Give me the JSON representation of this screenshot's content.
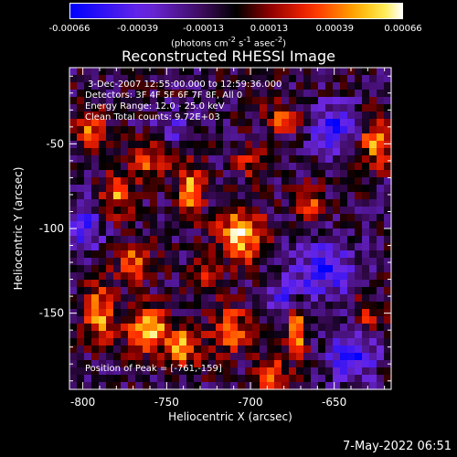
{
  "colorbar": {
    "units_main": "(photons cm",
    "units_sup1": "-2",
    "units_mid": " s",
    "units_sup2": "-1",
    "units_end": " asec",
    "units_sup3": "-2",
    "units_close": ")",
    "min": -0.00066,
    "max": 0.00066,
    "tick_labels": [
      "-0.00066",
      "-0.00039",
      "-0.00013",
      "0.00013",
      "0.00039",
      "0.00066"
    ],
    "tick_values": [
      -0.00066,
      -0.00039,
      -0.00013,
      0.00013,
      0.00039,
      0.00066
    ]
  },
  "annotations": {
    "time_range": "3-Dec-2007 12:55:00.000 to 12:59:36.000",
    "detectors": "Detectors: 3F 4F 5F 6F 7F 8F, All 0",
    "energy_range": "Energy Range: 12.0 - 25.0 keV",
    "clean_counts": "Clean     Total counts: 9.72E+03",
    "peak_position": "Position of Peak = [-761,-159]"
  },
  "footer": {
    "timestamp": "7-May-2022 06:51"
  },
  "chart_data": {
    "type": "heatmap",
    "title": "Reconstructed RHESSI Image",
    "xlabel": "Heliocentric X (arcsec)",
    "ylabel": "Heliocentric Y (arcsec)",
    "xlim": [
      -808,
      -616
    ],
    "ylim": [
      -195,
      -5
    ],
    "x_ticks": [
      -800,
      -750,
      -700,
      -650
    ],
    "x_tick_labels": [
      "-800",
      "-750",
      "-700",
      "-650"
    ],
    "y_ticks": [
      -150,
      -100,
      -50
    ],
    "y_tick_labels": [
      "-150",
      "-100",
      "-50"
    ],
    "peak": {
      "x": -761,
      "y": -159
    },
    "colormap": "RHESSI blue-purple-red-yellow-white",
    "colors": {
      "low": "#0000ff",
      "mid_low": "#7a2dff",
      "zero": "#000000",
      "mid_high": "#ff2a00",
      "high": "#ffffff"
    },
    "sources": [
      {
        "x": -761,
        "y": -159,
        "amp": 1.0,
        "sx": 8,
        "sy": 9
      },
      {
        "x": -736,
        "y": -78,
        "amp": 0.92,
        "sx": 5,
        "sy": 10
      },
      {
        "x": -706,
        "y": -103,
        "amp": 0.95,
        "sx": 9,
        "sy": 11
      },
      {
        "x": -790,
        "y": -150,
        "amp": 0.75,
        "sx": 6,
        "sy": 12
      },
      {
        "x": -780,
        "y": -80,
        "amp": 0.7,
        "sx": 6,
        "sy": 9
      },
      {
        "x": -795,
        "y": -42,
        "amp": 0.65,
        "sx": 6,
        "sy": 8
      },
      {
        "x": -760,
        "y": -60,
        "amp": 0.55,
        "sx": 8,
        "sy": 8
      },
      {
        "x": -740,
        "y": -170,
        "amp": 0.8,
        "sx": 7,
        "sy": 8
      },
      {
        "x": -712,
        "y": -160,
        "amp": 0.75,
        "sx": 8,
        "sy": 9
      },
      {
        "x": -688,
        "y": -185,
        "amp": 0.7,
        "sx": 6,
        "sy": 7
      },
      {
        "x": -672,
        "y": -160,
        "amp": 0.8,
        "sx": 4,
        "sy": 12
      },
      {
        "x": -625,
        "y": -48,
        "amp": 0.85,
        "sx": 6,
        "sy": 10
      },
      {
        "x": -680,
        "y": -35,
        "amp": 0.55,
        "sx": 8,
        "sy": 6
      },
      {
        "x": -700,
        "y": -60,
        "amp": 0.45,
        "sx": 7,
        "sy": 6
      },
      {
        "x": -665,
        "y": -85,
        "amp": 0.6,
        "sx": 5,
        "sy": 8
      },
      {
        "x": -728,
        "y": -130,
        "amp": 0.55,
        "sx": 6,
        "sy": 7
      },
      {
        "x": -770,
        "y": -120,
        "amp": 0.6,
        "sx": 7,
        "sy": 8
      },
      {
        "x": -630,
        "y": -150,
        "amp": 0.45,
        "sx": 6,
        "sy": 8
      },
      {
        "x": -655,
        "y": -125,
        "amp": -0.7,
        "sx": 12,
        "sy": 12
      },
      {
        "x": -640,
        "y": -175,
        "amp": -0.8,
        "sx": 10,
        "sy": 10
      },
      {
        "x": -650,
        "y": -40,
        "amp": -0.65,
        "sx": 10,
        "sy": 10
      },
      {
        "x": -680,
        "y": -140,
        "amp": -0.5,
        "sx": 8,
        "sy": 8
      },
      {
        "x": -800,
        "y": -100,
        "amp": -0.55,
        "sx": 8,
        "sy": 10
      },
      {
        "x": -745,
        "y": -40,
        "amp": -0.4,
        "sx": 8,
        "sy": 8
      }
    ]
  }
}
